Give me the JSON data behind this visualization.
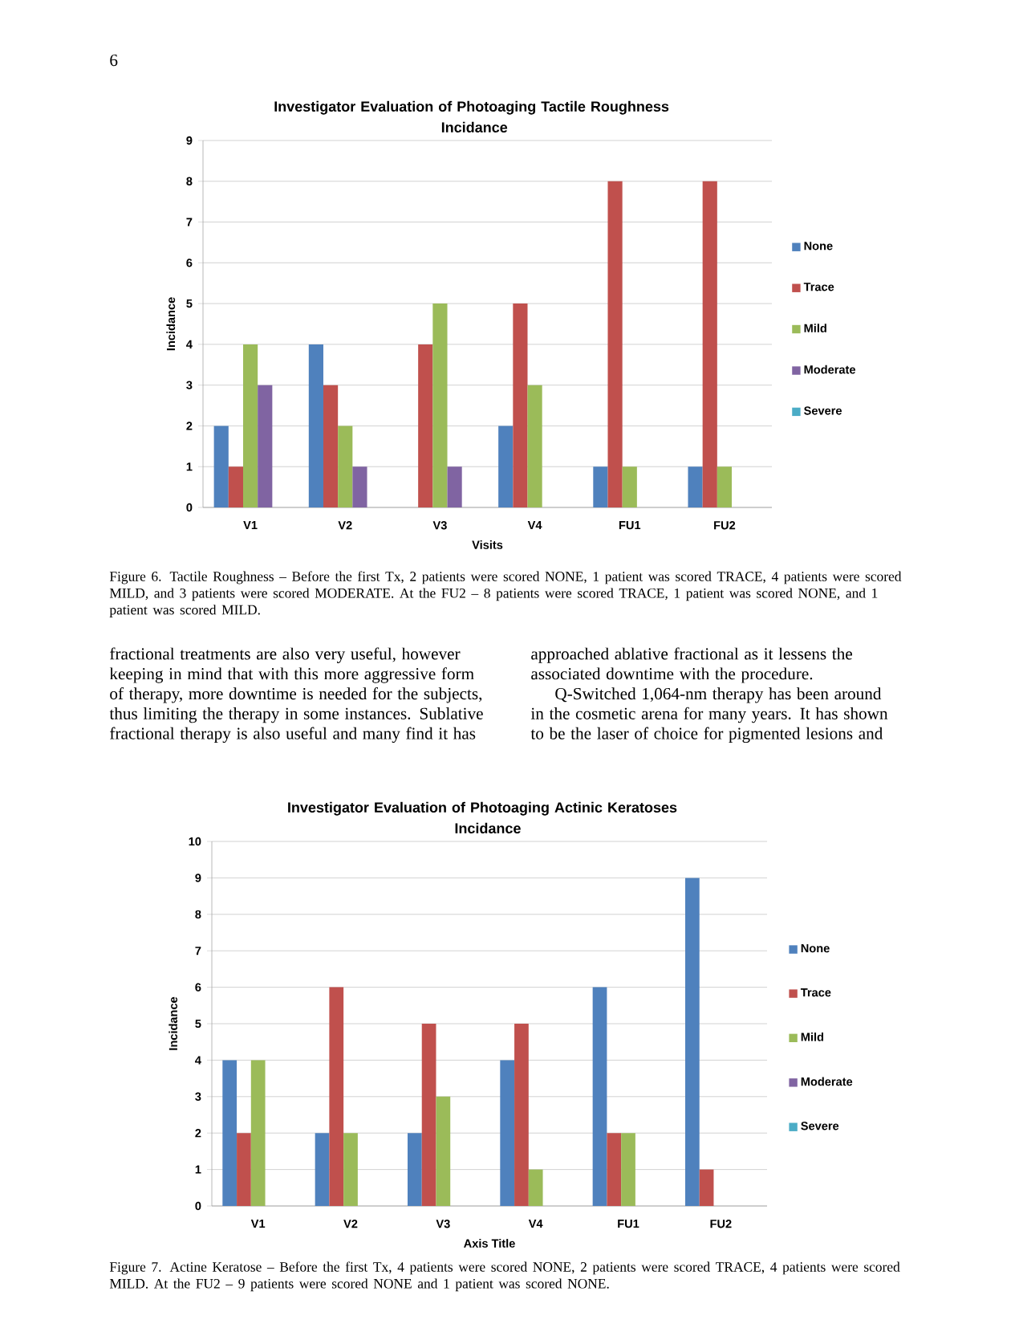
{
  "chart_data": [
    {
      "type": "bar",
      "title": "Investigator Evaluation of Photoaging Tactile Roughness Incidance",
      "xlabel": "Visits",
      "ylabel": "Incidance",
      "categories": [
        "V1",
        "V2",
        "V3",
        "V4",
        "FU1",
        "FU2"
      ],
      "series": [
        {
          "name": "None",
          "color": "#4f81bd",
          "values": [
            2,
            4,
            0,
            2,
            1,
            1
          ]
        },
        {
          "name": "Trace",
          "color": "#c0504d",
          "values": [
            1,
            3,
            4,
            5,
            8,
            8
          ]
        },
        {
          "name": "Mild",
          "color": "#9bbb59",
          "values": [
            4,
            2,
            5,
            3,
            1,
            1
          ]
        },
        {
          "name": "Moderate",
          "color": "#8064a2",
          "values": [
            3,
            1,
            1,
            0,
            0,
            0
          ]
        },
        {
          "name": "Severe",
          "color": "#4bacc6",
          "values": [
            0,
            0,
            0,
            0,
            0,
            0
          ]
        }
      ],
      "ylim": [
        0,
        9
      ],
      "yticks": [
        0,
        1,
        2,
        3,
        4,
        5,
        6,
        7,
        8,
        9
      ],
      "grid": "y",
      "legend": "right",
      "annotations": [
        "6",
        "Figure 6. Tactile Roughness – Before the first Tx, 2 patients were scored NONE, 1 patient was scored TRACE, 4 patients were scored MILD, and 3 patients were scored MODERATE. At the FU2 – 8 patients were scored TRACE, 1 patient was scored NONE, and 1 patient was scored MILD.",
        "fractional treatments are also very useful, however keeping in mind that with this more aggressive form of therapy, more downtime is needed for the subjects, thus limiting the therapy in some instances. Sublative fractional therapy is also useful and many find it has",
        "approached ablative fractional as it lessens the associated downtime with the procedure.",
        "Q-Switched 1,064-nm therapy has been around in the cosmetic arena for many years. It has shown to be the laser of choice for pigmented lesions and"
      ]
    },
    {
      "type": "bar",
      "title": "Investigator Evaluation of Photoaging Actinic Keratoses Incidance",
      "xlabel": "Axis Title",
      "ylabel": "Incidance",
      "categories": [
        "V1",
        "V2",
        "V3",
        "V4",
        "FU1",
        "FU2"
      ],
      "series": [
        {
          "name": "None",
          "color": "#4f81bd",
          "values": [
            4,
            2,
            2,
            4,
            6,
            9
          ]
        },
        {
          "name": "Trace",
          "color": "#c0504d",
          "values": [
            2,
            6,
            5,
            5,
            2,
            1
          ]
        },
        {
          "name": "Mild",
          "color": "#9bbb59",
          "values": [
            4,
            2,
            3,
            1,
            2,
            0
          ]
        },
        {
          "name": "Moderate",
          "color": "#8064a2",
          "values": [
            0,
            0,
            0,
            0,
            0,
            0
          ]
        },
        {
          "name": "Severe",
          "color": "#4bacc6",
          "values": [
            0,
            0,
            0,
            0,
            0,
            0
          ]
        }
      ],
      "ylim": [
        0,
        10
      ],
      "yticks": [
        0,
        1,
        2,
        3,
        4,
        5,
        6,
        7,
        8,
        9,
        10
      ],
      "grid": "y",
      "legend": "right",
      "annotations": [
        "Figure 7. Actine Keratose – Before the first Tx, 4 patients were scored NONE, 2 patients were scored TRACE, 4 patients were scored MILD. At the FU2 – 9 patients were scored NONE and 1 patient was scored NONE."
      ]
    }
  ]
}
